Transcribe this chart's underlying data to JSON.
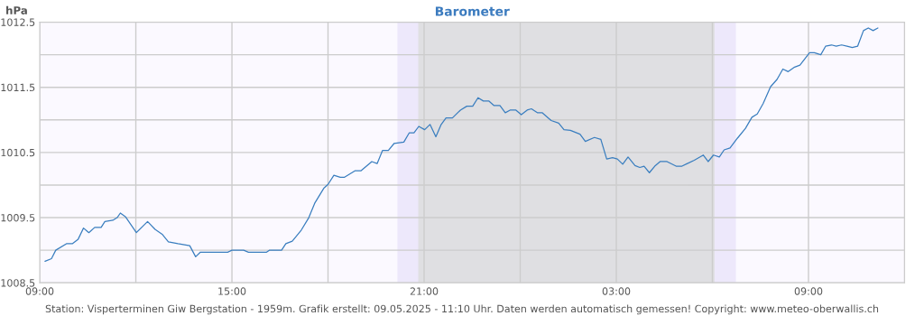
{
  "chart_data": {
    "type": "line",
    "title": "Barometer",
    "ylabel": "hPa",
    "annotations": [
      "Station: Visperterminen Giw Bergstation - 1959m. Grafik erstellt: 09.05.2025 - 11:10 Uhr. Daten werden automatisch gemessen! Copyright: www.meteo-oberwallis.ch"
    ],
    "series": [
      {
        "color": "#3a7ebf",
        "x": [
          "2025-05-08T09:10",
          "2025-05-08T09:22",
          "2025-05-08T09:30",
          "2025-05-08T09:50",
          "2025-05-08T10:01",
          "2025-05-08T10:12",
          "2025-05-08T10:22",
          "2025-05-08T10:32",
          "2025-05-08T10:43",
          "2025-05-08T10:55",
          "2025-05-08T11:02",
          "2025-05-08T11:17",
          "2025-05-08T11:25",
          "2025-05-08T11:31",
          "2025-05-08T11:41",
          "2025-05-08T12:01",
          "2025-05-08T12:22",
          "2025-05-08T12:36",
          "2025-05-08T12:50",
          "2025-05-08T13:01",
          "2025-05-08T13:19",
          "2025-05-08T13:41",
          "2025-05-08T13:52",
          "2025-05-08T14:01",
          "2025-05-08T14:52",
          "2025-05-08T15:00",
          "2025-05-08T15:22",
          "2025-05-08T15:31",
          "2025-05-08T16:05",
          "2025-05-08T16:10",
          "2025-05-08T16:33",
          "2025-05-08T16:41",
          "2025-05-08T16:53",
          "2025-05-08T17:10",
          "2025-05-08T17:24",
          "2025-05-08T17:35",
          "2025-05-08T17:52",
          "2025-05-08T18:00",
          "2025-05-08T18:11",
          "2025-05-08T18:23",
          "2025-05-08T18:31",
          "2025-05-08T18:51",
          "2025-05-08T19:02",
          "2025-05-08T19:22",
          "2025-05-08T19:32",
          "2025-05-08T19:42",
          "2025-05-08T19:53",
          "2025-05-08T20:04",
          "2025-05-08T20:22",
          "2025-05-08T20:32",
          "2025-05-08T20:41",
          "2025-05-08T20:50",
          "2025-05-08T21:01",
          "2025-05-08T21:11",
          "2025-05-08T21:22",
          "2025-05-08T21:32",
          "2025-05-08T21:41",
          "2025-05-08T21:53",
          "2025-05-08T22:08",
          "2025-05-08T22:20",
          "2025-05-08T22:31",
          "2025-05-08T22:41",
          "2025-05-08T22:51",
          "2025-05-08T23:01",
          "2025-05-08T23:11",
          "2025-05-08T23:22",
          "2025-05-08T23:32",
          "2025-05-08T23:41",
          "2025-05-08T23:52",
          "2025-05-09T00:02",
          "2025-05-09T00:13",
          "2025-05-09T00:21",
          "2025-05-09T00:32",
          "2025-05-09T00:41",
          "2025-05-09T00:58",
          "2025-05-09T01:12",
          "2025-05-09T01:22",
          "2025-05-09T01:34",
          "2025-05-09T01:52",
          "2025-05-09T02:02",
          "2025-05-09T02:19",
          "2025-05-09T02:31",
          "2025-05-09T02:42",
          "2025-05-09T02:53",
          "2025-05-09T03:02",
          "2025-05-09T03:12",
          "2025-05-09T03:22",
          "2025-05-09T03:35",
          "2025-05-09T03:44",
          "2025-05-09T03:52",
          "2025-05-09T04:02",
          "2025-05-09T04:12",
          "2025-05-09T04:22",
          "2025-05-09T04:35",
          "2025-05-09T04:52",
          "2025-05-09T05:03",
          "2025-05-09T05:13",
          "2025-05-09T05:26",
          "2025-05-09T05:43",
          "2025-05-09T05:52",
          "2025-05-09T06:02",
          "2025-05-09T06:13",
          "2025-05-09T06:22",
          "2025-05-09T06:33",
          "2025-05-09T06:47",
          "2025-05-09T07:02",
          "2025-05-09T07:14",
          "2025-05-09T07:24",
          "2025-05-09T07:35",
          "2025-05-09T07:49",
          "2025-05-09T08:01",
          "2025-05-09T08:12",
          "2025-05-09T08:22",
          "2025-05-09T08:34",
          "2025-05-09T08:44",
          "2025-05-09T09:02",
          "2025-05-09T09:11",
          "2025-05-09T09:23",
          "2025-05-09T09:32",
          "2025-05-09T09:43",
          "2025-05-09T09:52",
          "2025-05-09T10:02",
          "2025-05-09T10:12",
          "2025-05-09T10:22",
          "2025-05-09T10:32",
          "2025-05-09T10:43",
          "2025-05-09T10:52",
          "2025-05-09T11:01",
          "2025-05-09T11:10"
        ],
        "values": [
          1008.83,
          1008.87,
          1009.0,
          1009.1,
          1009.1,
          1009.17,
          1009.34,
          1009.27,
          1009.35,
          1009.35,
          1009.44,
          1009.46,
          1009.5,
          1009.57,
          1009.51,
          1009.27,
          1009.44,
          1009.32,
          1009.24,
          1009.13,
          1009.1,
          1009.07,
          1008.9,
          1008.97,
          1008.97,
          1009.0,
          1009.0,
          1008.97,
          1008.97,
          1009.0,
          1009.0,
          1009.1,
          1009.14,
          1009.31,
          1009.5,
          1009.72,
          1009.95,
          1010.01,
          1010.15,
          1010.12,
          1010.12,
          1010.22,
          1010.22,
          1010.36,
          1010.33,
          1010.53,
          1010.53,
          1010.64,
          1010.66,
          1010.8,
          1010.8,
          1010.9,
          1010.85,
          1010.93,
          1010.74,
          1010.93,
          1011.03,
          1011.03,
          1011.15,
          1011.21,
          1011.21,
          1011.34,
          1011.29,
          1011.29,
          1011.22,
          1011.22,
          1011.11,
          1011.15,
          1011.15,
          1011.08,
          1011.15,
          1011.17,
          1011.11,
          1011.11,
          1010.99,
          1010.95,
          1010.85,
          1010.84,
          1010.78,
          1010.67,
          1010.73,
          1010.7,
          1010.4,
          1010.42,
          1010.4,
          1010.32,
          1010.43,
          1010.3,
          1010.27,
          1010.29,
          1010.19,
          1010.29,
          1010.36,
          1010.36,
          1010.29,
          1010.29,
          1010.33,
          1010.38,
          1010.46,
          1010.36,
          1010.46,
          1010.43,
          1010.54,
          1010.57,
          1010.72,
          1010.87,
          1011.04,
          1011.09,
          1011.25,
          1011.51,
          1011.62,
          1011.78,
          1011.74,
          1011.81,
          1011.84,
          1012.03,
          1012.03,
          1012.0,
          1012.13,
          1012.15,
          1012.13,
          1012.15,
          1012.13,
          1012.11,
          1012.13,
          1012.37,
          1012.41,
          1012.37,
          1012.41
        ]
      }
    ],
    "xlim": [
      "2025-05-08T09:00",
      "2025-05-09T12:00"
    ],
    "xticks": [
      {
        "value": "2025-05-08T09:00",
        "label": "09:00"
      },
      {
        "value": "2025-05-08T12:00",
        "label": null
      },
      {
        "value": "2025-05-08T15:00",
        "label": "15:00"
      },
      {
        "value": "2025-05-08T18:00",
        "label": null
      },
      {
        "value": "2025-05-08T21:00",
        "label": "21:00"
      },
      {
        "value": "2025-05-09T00:00",
        "label": null
      },
      {
        "value": "2025-05-09T03:00",
        "label": "03:00"
      },
      {
        "value": "2025-05-09T06:00",
        "label": null
      },
      {
        "value": "2025-05-09T09:00",
        "label": "09:00"
      },
      {
        "value": "2025-05-09T12:00",
        "label": null
      }
    ],
    "ylim": [
      1008.5,
      1012.5
    ],
    "yticks": [
      1008.5,
      {
        "value": 1009,
        "label": null
      },
      1009.5,
      {
        "value": 1010,
        "label": null
      },
      1010.5,
      {
        "value": 1011,
        "label": null
      },
      1011.5,
      {
        "value": 1012,
        "label": null
      },
      1012.5
    ],
    "bands": [
      {
        "axis": "x",
        "from": "2025-05-08T20:10",
        "to": "2025-05-09T06:44",
        "color": "#ede8fb"
      },
      {
        "axis": "x",
        "from": "2025-05-08T20:49",
        "to": "2025-05-09T06:04",
        "color": "#dfdfe2"
      }
    ],
    "grid": true,
    "legend": false,
    "marker": "none",
    "line_style": "solid"
  }
}
